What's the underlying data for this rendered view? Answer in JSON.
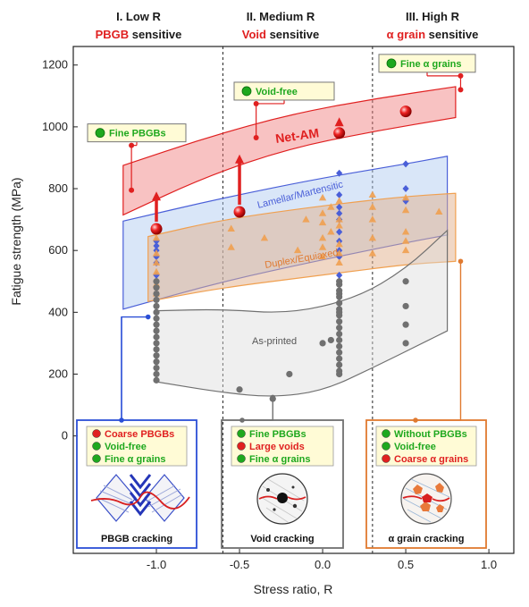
{
  "colors": {
    "red": "#e02020",
    "green": "#1ea81e",
    "blue": "#4a5fd8",
    "orange": "#f0a050",
    "grey": "#707070",
    "callout_bg": "#fffbd6"
  },
  "regimes": [
    {
      "title": "I. Low R",
      "sub_red": "PBGB",
      "sub_rest": " sensitive"
    },
    {
      "title": "II. Medium R",
      "sub_red": "Void",
      "sub_rest": " sensitive"
    },
    {
      "title": "III. High R",
      "sub_red": "α grain",
      "sub_rest": " sensitive"
    }
  ],
  "chart_data": {
    "type": "scatter",
    "xlabel": "Stress ratio, R",
    "ylabel": "Fatigue strength (MPa)",
    "xlim": [
      -1.5,
      1.15
    ],
    "ylim": [
      -380,
      1260
    ],
    "x_ticks": [
      "-1.0",
      "-0.5",
      "0.0",
      "0.5",
      "1.0"
    ],
    "x_tick_values": [
      -1.0,
      -0.5,
      0.0,
      0.5,
      1.0
    ],
    "y_ticks": [
      0,
      200,
      400,
      600,
      800,
      1000,
      1200
    ],
    "regime_boundaries": [
      -0.6,
      0.3
    ],
    "bands": [
      {
        "name": "Net-AM",
        "color": "#e02020",
        "upper": [
          [
            -1.2,
            875
          ],
          [
            -0.7,
            965
          ],
          [
            -0.2,
            1040
          ],
          [
            0.3,
            1090
          ],
          [
            0.8,
            1130
          ]
        ],
        "lower": [
          [
            -1.2,
            715
          ],
          [
            -0.7,
            840
          ],
          [
            -0.2,
            930
          ],
          [
            0.3,
            985
          ],
          [
            0.8,
            1030
          ]
        ]
      },
      {
        "name": "Lamellar/Martensitic",
        "color": "#4a5fd8",
        "upper": [
          [
            -1.2,
            695
          ],
          [
            -0.6,
            770
          ],
          [
            0.0,
            835
          ],
          [
            0.5,
            880
          ],
          [
            0.75,
            905
          ]
        ],
        "lower": [
          [
            -1.2,
            410
          ],
          [
            -0.6,
            500
          ],
          [
            0.0,
            570
          ],
          [
            0.5,
            625
          ],
          [
            0.75,
            650
          ]
        ]
      },
      {
        "name": "Duplex/Equiaxed",
        "color": "#f0a050",
        "upper": [
          [
            -1.05,
            645
          ],
          [
            -0.6,
            700
          ],
          [
            0.0,
            745
          ],
          [
            0.5,
            775
          ],
          [
            0.8,
            785
          ]
        ],
        "lower": [
          [
            -1.05,
            435
          ],
          [
            -0.6,
            480
          ],
          [
            0.0,
            520
          ],
          [
            0.5,
            555
          ],
          [
            0.8,
            565
          ]
        ]
      },
      {
        "name": "As-printed",
        "color": "#707070",
        "upper": [
          [
            -1.0,
            405
          ],
          [
            -0.6,
            410
          ],
          [
            -0.2,
            395
          ],
          [
            0.2,
            445
          ],
          [
            0.5,
            540
          ],
          [
            0.75,
            665
          ]
        ],
        "lower": [
          [
            -1.0,
            175
          ],
          [
            -0.6,
            140
          ],
          [
            -0.3,
            125
          ],
          [
            0.0,
            145
          ],
          [
            0.3,
            220
          ],
          [
            0.6,
            300
          ],
          [
            0.75,
            340
          ]
        ]
      }
    ],
    "series": [
      {
        "name": "Net-AM",
        "marker": "sphere",
        "color": "#e02020",
        "x": [
          -1.0,
          -0.5,
          0.1,
          0.5
        ],
        "y": [
          670,
          725,
          980,
          1050
        ]
      },
      {
        "name": "Lamellar/Martensitic",
        "marker": "diamond",
        "color": "#4a5fd8",
        "x": [
          -1.0,
          -1.0,
          -1.0,
          -1.0,
          -1.0,
          -1.0,
          -1.0,
          -1.0,
          -1.0,
          0.1,
          0.1,
          0.1,
          0.1,
          0.1,
          0.1,
          0.1,
          0.1,
          0.1,
          0.1,
          0.5,
          0.5,
          0.5
        ],
        "y": [
          630,
          615,
          600,
          580,
          560,
          520,
          500,
          480,
          420,
          850,
          780,
          740,
          720,
          700,
          660,
          630,
          600,
          580,
          520,
          880,
          800,
          760
        ]
      },
      {
        "name": "Duplex/Equiaxed",
        "marker": "triangle",
        "color": "#f0a050",
        "x": [
          -1.0,
          -1.0,
          -1.0,
          -1.0,
          -1.0,
          -1.0,
          -0.55,
          -0.55,
          -0.35,
          -0.15,
          -0.1,
          0.0,
          0.0,
          0.0,
          0.0,
          0.0,
          0.0,
          0.05,
          0.05,
          0.1,
          0.1,
          0.1,
          0.1,
          0.1,
          0.1,
          0.3,
          0.3,
          0.3,
          0.3,
          0.3,
          0.5,
          0.5,
          0.5,
          0.5,
          0.5,
          0.7
        ],
        "y": [
          640,
          590,
          560,
          530,
          490,
          460,
          670,
          610,
          640,
          600,
          700,
          770,
          720,
          690,
          640,
          610,
          580,
          740,
          660,
          760,
          700,
          680,
          620,
          590,
          560,
          780,
          740,
          700,
          640,
          590,
          770,
          730,
          660,
          630,
          600,
          725
        ]
      },
      {
        "name": "As-printed",
        "marker": "circle",
        "color": "#707070",
        "x": [
          -1.0,
          -1.0,
          -1.0,
          -1.0,
          -1.0,
          -1.0,
          -1.0,
          -1.0,
          -1.0,
          -1.0,
          -1.0,
          -1.0,
          -1.0,
          -1.0,
          -1.0,
          -1.0,
          -1.0,
          -0.5,
          -0.3,
          -0.2,
          0.0,
          0.05,
          0.1,
          0.1,
          0.1,
          0.1,
          0.1,
          0.1,
          0.1,
          0.1,
          0.1,
          0.1,
          0.1,
          0.1,
          0.1,
          0.1,
          0.1,
          0.1,
          0.1,
          0.1,
          0.1,
          0.5,
          0.5,
          0.5,
          0.5
        ],
        "y": [
          400,
          380,
          360,
          340,
          320,
          300,
          280,
          260,
          240,
          220,
          200,
          180,
          420,
          440,
          460,
          480,
          500,
          150,
          120,
          200,
          300,
          310,
          500,
          490,
          470,
          450,
          430,
          410,
          390,
          370,
          350,
          330,
          310,
          290,
          270,
          250,
          230,
          210,
          200,
          400,
          460,
          500,
          420,
          300,
          360
        ]
      }
    ],
    "arrows": [
      {
        "x": -1.0,
        "from": 670,
        "to": 785
      },
      {
        "x": -0.5,
        "from": 725,
        "to": 905
      },
      {
        "x": 0.1,
        "from": 985,
        "to": 1025
      }
    ],
    "callouts": [
      {
        "label": "Fine PBGBs",
        "dot": "#1ea81e",
        "anchor_x": -1.15,
        "anchor_y": 795,
        "elbow_y": 940
      },
      {
        "label": "Void-free",
        "dot": "#1ea81e",
        "anchor_x": -0.4,
        "anchor_y": 965,
        "elbow_y": 1075
      },
      {
        "label": "Fine α grains",
        "dot": "#1ea81e",
        "anchor_x": 0.83,
        "anchor_y": 1120,
        "elbow_y": 1165
      }
    ]
  },
  "band_labels": {
    "net_am": "Net-AM",
    "lamellar": "Lamellar/Martensitic",
    "duplex": "Duplex/Equiaxed",
    "as_printed": "As-printed"
  },
  "panels": [
    {
      "caption": "PBGB cracking",
      "border": "#2b4fd6",
      "items": [
        {
          "text": "Coarse PBGBs",
          "dot": "#e02020",
          "color": "#e02020"
        },
        {
          "text": "Void-free",
          "dot": "#1ea81e",
          "color": "#1ea81e"
        },
        {
          "text": "Fine α grains",
          "dot": "#1ea81e",
          "color": "#1ea81e"
        }
      ]
    },
    {
      "caption": "Void cracking",
      "border": "#707070",
      "items": [
        {
          "text": "Fine PBGBs",
          "dot": "#1ea81e",
          "color": "#1ea81e"
        },
        {
          "text": "Large voids",
          "dot": "#e02020",
          "color": "#e02020"
        },
        {
          "text": "Fine α grains",
          "dot": "#1ea81e",
          "color": "#1ea81e"
        }
      ]
    },
    {
      "caption": "α grain cracking",
      "border": "#e07a30",
      "items": [
        {
          "text": "Without PBGBs",
          "dot": "#1ea81e",
          "color": "#1ea81e"
        },
        {
          "text": "Void-free",
          "dot": "#1ea81e",
          "color": "#1ea81e"
        },
        {
          "text": "Coarse α grains",
          "dot": "#e02020",
          "color": "#e02020"
        }
      ]
    }
  ],
  "panel_leaders": [
    {
      "color": "#2b4fd6",
      "x": -1.05,
      "y": 385
    },
    {
      "color": "#707070",
      "x": -0.3,
      "y": 125
    },
    {
      "color": "#e07a30",
      "x": 0.83,
      "y": 565
    }
  ]
}
